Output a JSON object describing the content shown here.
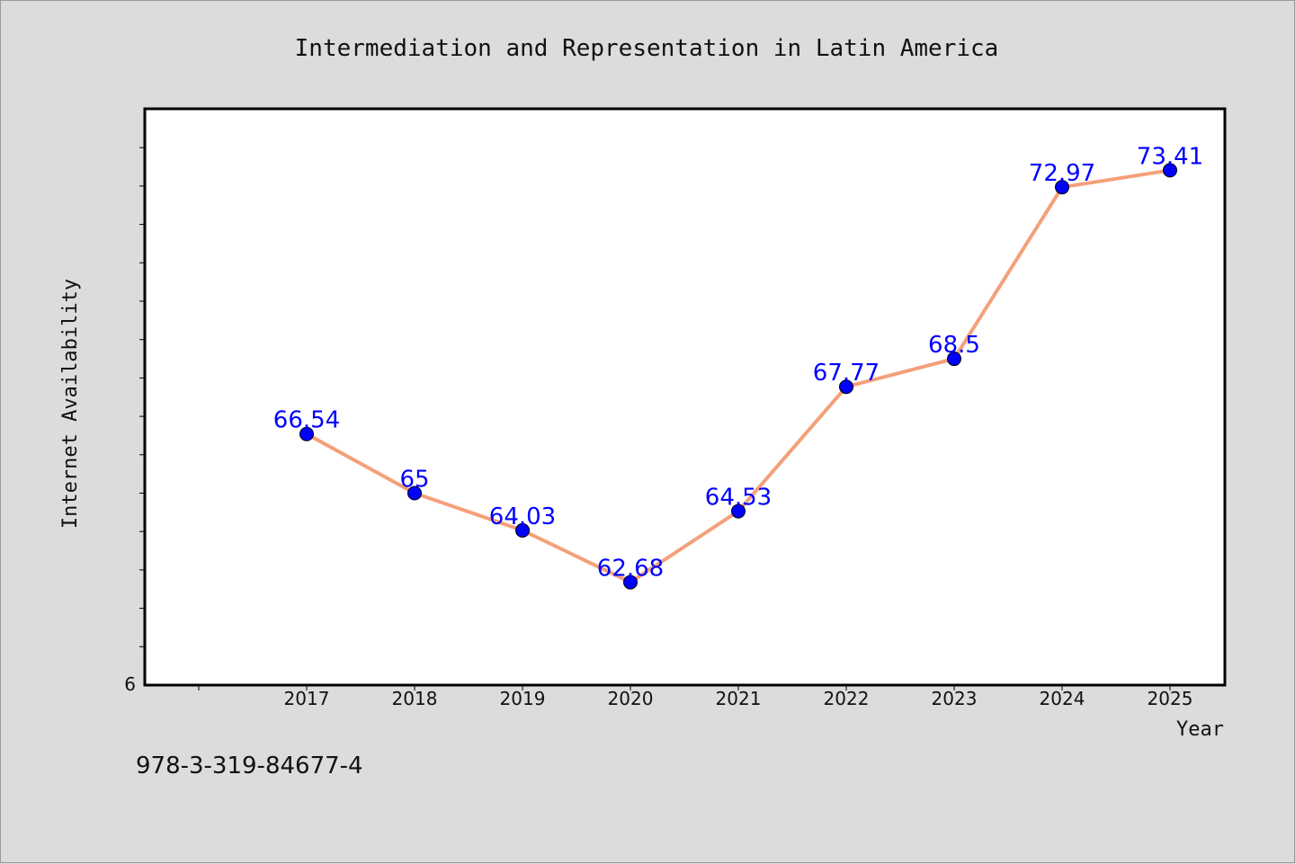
{
  "chart_data": {
    "type": "line",
    "title": "Intermediation and Representation in Latin America",
    "xlabel": "Year",
    "ylabel": "Internet Availability",
    "categories": [
      "2017",
      "2018",
      "2019",
      "2020",
      "2021",
      "2022",
      "2023",
      "2024",
      "2025"
    ],
    "series": [
      {
        "values": [
          66.54,
          65,
          64.03,
          62.68,
          64.53,
          67.77,
          68.5,
          72.97,
          73.41
        ]
      }
    ],
    "data_labels": [
      "66.54",
      "65",
      "64.03",
      "62.68",
      "64.53",
      "67.77",
      "68.5",
      "72.97",
      "73.41"
    ],
    "y_tick_labels": [
      "6"
    ],
    "ylim": [
      60,
      75
    ],
    "grid": false,
    "legend": "none",
    "colors": {
      "line": "#f4a07a",
      "marker": "#0000ff",
      "data_label": "#0000ff",
      "plot_background": "#ffffff",
      "figure_background": "#dcdcdc"
    }
  },
  "footer": {
    "isbn": "978-3-319-84677-4"
  }
}
